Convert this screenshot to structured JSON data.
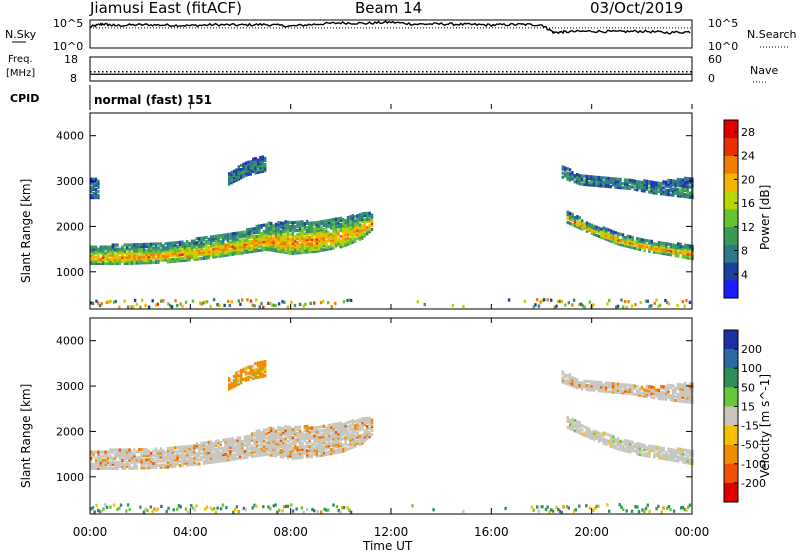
{
  "header": {
    "station": "Jiamusi East (fitACF)",
    "beam": "Beam 14",
    "date": "03/Oct/2019"
  },
  "strip": {
    "nsky_label": "N.Sky",
    "nsky_ticks": [
      "10^5",
      "10^0"
    ],
    "nsearch_label": "N.Search",
    "nsearch_ticks": [
      "10^5",
      "10^0"
    ],
    "freq_label_1": "Freq.",
    "freq_label_2": "[MHz]",
    "freq_ticks": [
      "18",
      "8"
    ],
    "nave_label": "Nave",
    "nave_ticks": [
      "60",
      "0"
    ],
    "cpid_label": "CPID",
    "cpid_value": "normal (fast) 151"
  },
  "x_axis": {
    "label": "Time UT",
    "ticks": [
      "00:00",
      "04:00",
      "08:00",
      "12:00",
      "16:00",
      "20:00",
      "00:00"
    ]
  },
  "power_colorbar": {
    "label": "Power [dB]",
    "ticks": [
      "28",
      "24",
      "20",
      "16",
      "12",
      "8",
      "4"
    ],
    "colors": [
      "#1b1bff",
      "#1d3f9e",
      "#2c7a8c",
      "#3a9a5a",
      "#66c233",
      "#b8d600",
      "#f5b400",
      "#f07c00",
      "#e83000",
      "#e00000"
    ]
  },
  "velocity_colorbar": {
    "label": "Velocity [m s^-1]",
    "ticks": [
      "200",
      "100",
      "50",
      "15",
      "-15",
      "-50",
      "-100",
      "-200"
    ],
    "colors": [
      "#1b2fa6",
      "#2a6aa0",
      "#2f8f5a",
      "#68c63a",
      "#c7c7c0",
      "#f5c000",
      "#f08c00",
      "#f05000",
      "#e00000"
    ]
  },
  "chart_data": [
    {
      "type": "line",
      "title": "N.Sky / N.Search",
      "x_range_hours": [
        0,
        24
      ],
      "series": [
        {
          "name": "N.Sky",
          "style": "solid",
          "x": [
            0,
            0.5,
            1,
            2,
            3,
            4,
            5,
            6,
            7,
            8,
            9,
            10,
            11,
            12,
            13,
            14,
            15,
            16,
            17,
            18,
            18.5,
            19,
            20,
            21,
            22,
            23,
            24
          ],
          "y_frac": [
            0.75,
            0.86,
            0.8,
            0.83,
            0.82,
            0.8,
            0.83,
            0.82,
            0.84,
            0.78,
            0.85,
            0.9,
            0.88,
            0.92,
            0.85,
            0.86,
            0.84,
            0.82,
            0.84,
            0.83,
            0.55,
            0.58,
            0.6,
            0.58,
            0.6,
            0.55,
            0.58
          ]
        },
        {
          "name": "N.Search",
          "style": "dotted",
          "x": [
            0,
            24
          ],
          "y_frac": [
            0.72,
            0.72
          ]
        }
      ]
    },
    {
      "type": "line",
      "title": "Freq. / Nave",
      "x_range_hours": [
        0,
        24
      ],
      "series": [
        {
          "name": "Freq.",
          "unit": "MHz",
          "style": "solid",
          "x": [
            0,
            24
          ],
          "y": [
            10.8,
            10.8
          ]
        },
        {
          "name": "Nave",
          "style": "dotted",
          "x": [
            0,
            24
          ],
          "y": [
            23,
            23
          ]
        }
      ]
    },
    {
      "type": "heatmap",
      "title": "Power",
      "xlabel": "Time UT",
      "ylabel": "Slant Range [km]",
      "y_ticks": [
        1000,
        2000,
        3000,
        4000
      ],
      "ylim": [
        180,
        4500
      ],
      "xlim_hours": [
        0,
        24
      ],
      "bands": [
        {
          "t": [
            0,
            1.5,
            3,
            4.5,
            6,
            7,
            8,
            9,
            10,
            10.8,
            11.2
          ],
          "lo": [
            1150,
            1150,
            1180,
            1260,
            1380,
            1460,
            1370,
            1420,
            1520,
            1700,
            1900
          ],
          "hi": [
            1550,
            1560,
            1600,
            1720,
            1870,
            2040,
            2080,
            2080,
            2150,
            2250,
            2300
          ],
          "peak_db": 22,
          "base_db": 9
        },
        {
          "t": [
            19,
            20,
            21,
            22,
            23,
            24
          ],
          "lo": [
            2050,
            1800,
            1580,
            1440,
            1350,
            1250
          ],
          "hi": [
            2300,
            2000,
            1850,
            1700,
            1600,
            1550
          ],
          "peak_db": 22,
          "base_db": 8
        },
        {
          "t": [
            18.8,
            19.5,
            20.5,
            21.5,
            22.5,
            24
          ],
          "lo": [
            3050,
            2900,
            2850,
            2800,
            2700,
            2600
          ],
          "hi": [
            3300,
            3100,
            3050,
            3000,
            2950,
            3050
          ],
          "peak_db": 10,
          "base_db": 7
        },
        {
          "t": [
            5.5,
            6.2,
            7
          ],
          "lo": [
            2900,
            3100,
            3200
          ],
          "hi": [
            3150,
            3400,
            3550
          ],
          "peak_db": 10,
          "base_db": 7
        },
        {
          "t": [
            0,
            0.3
          ],
          "lo": [
            2600,
            2600
          ],
          "hi": [
            3050,
            3050
          ],
          "peak_db": 8,
          "base_db": 6
        }
      ],
      "ground_scatter_band_km": [
        180,
        350
      ]
    },
    {
      "type": "heatmap",
      "title": "Velocity",
      "xlabel": "Time UT",
      "ylabel": "Slant Range [km]",
      "y_ticks": [
        1000,
        2000,
        3000,
        4000
      ],
      "ylim": [
        180,
        4500
      ],
      "xlim_hours": [
        0,
        24
      ],
      "bands": [
        {
          "t": [
            0,
            1.5,
            3,
            4.5,
            6,
            7,
            8,
            9,
            10,
            10.8,
            11.2
          ],
          "lo": [
            1150,
            1150,
            1180,
            1260,
            1380,
            1460,
            1370,
            1420,
            1520,
            1700,
            1900
          ],
          "hi": [
            1550,
            1560,
            1600,
            1720,
            1870,
            2040,
            2080,
            2080,
            2150,
            2250,
            2300
          ],
          "dominant_v": 0,
          "speckle_v": -60
        },
        {
          "t": [
            19,
            20,
            21,
            22,
            23,
            24
          ],
          "lo": [
            2050,
            1800,
            1580,
            1440,
            1350,
            1250
          ],
          "hi": [
            2300,
            2000,
            1850,
            1700,
            1600,
            1550
          ],
          "dominant_v": 0,
          "speckle_v": 0
        },
        {
          "t": [
            18.8,
            19.5,
            20.5,
            21.5,
            22.5,
            24
          ],
          "lo": [
            3050,
            2900,
            2850,
            2800,
            2700,
            2600
          ],
          "hi": [
            3300,
            3100,
            3050,
            3000,
            2950,
            3050
          ],
          "dominant_v": 0,
          "speckle_v": -60
        },
        {
          "t": [
            5.5,
            6.2,
            7
          ],
          "lo": [
            2900,
            3100,
            3200
          ],
          "hi": [
            3150,
            3400,
            3550
          ],
          "dominant_v": -60,
          "speckle_v": 0
        }
      ],
      "ground_scatter_band_km": [
        180,
        350
      ]
    }
  ]
}
